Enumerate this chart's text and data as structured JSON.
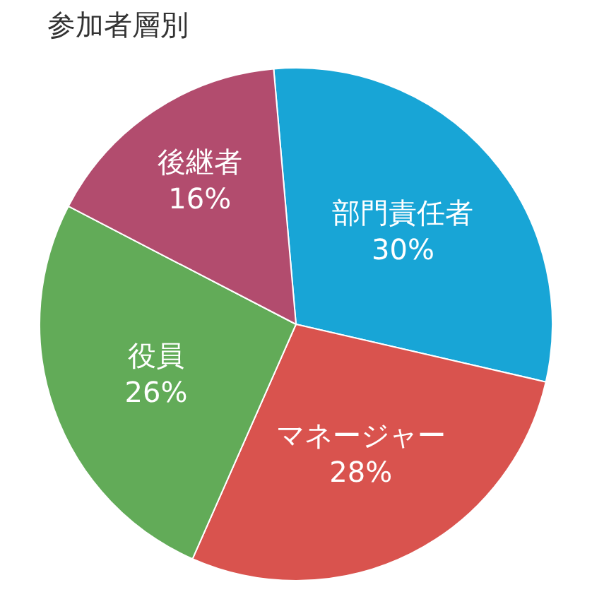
{
  "chart_data": {
    "type": "pie",
    "title": "参加者層別",
    "categories": [
      "部門責任者",
      "マネージャー",
      "役員",
      "後継者"
    ],
    "values": [
      30,
      28,
      26,
      16
    ],
    "value_labels": [
      "30%",
      "28%",
      "26%",
      "16%"
    ],
    "colors": [
      "#18a5d6",
      "#d9534e",
      "#62ab58",
      "#b24c6e"
    ],
    "legend": false
  }
}
